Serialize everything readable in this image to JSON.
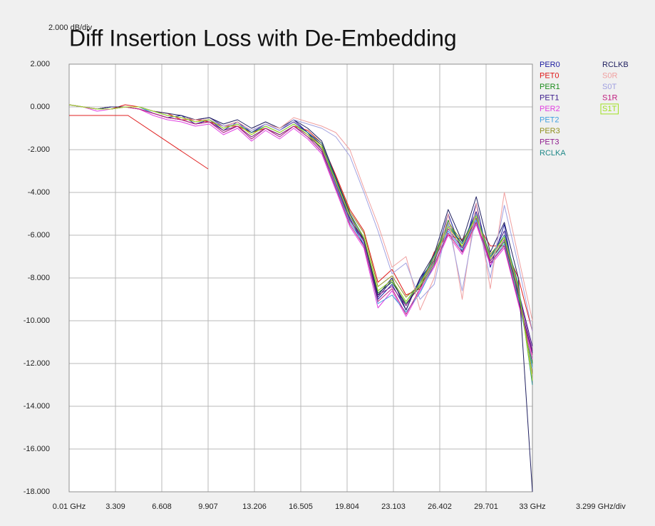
{
  "chart_data": {
    "type": "line",
    "title": "Diff Insertion Loss with De-Embedding",
    "y_scale_label": "2.000 dB/div",
    "x_scale_label": "3.299 GHz/div",
    "xlim": [
      0.01,
      33
    ],
    "ylim": [
      -18,
      2
    ],
    "grid": true,
    "xticks": [
      {
        "value": 0.01,
        "label": "0.01 GHz"
      },
      3.309,
      6.608,
      9.907,
      13.206,
      16.505,
      19.804,
      23.103,
      26.402,
      29.701,
      {
        "value": 33,
        "label": "33 GHz"
      }
    ],
    "yticks": [
      {
        "value": 2,
        "label": "2.000"
      },
      {
        "value": 0,
        "label": "0.000"
      },
      {
        "value": -2,
        "label": "-2.000"
      },
      {
        "value": -4,
        "label": "-4.000"
      },
      {
        "value": -6,
        "label": "-6.000"
      },
      {
        "value": -8,
        "label": "-8.000"
      },
      {
        "value": -10,
        "label": "-10.000"
      },
      {
        "value": -12,
        "label": "-12.000"
      },
      {
        "value": -14,
        "label": "-14.000"
      },
      {
        "value": -16,
        "label": "-16.000"
      },
      {
        "value": -18,
        "label": "-18.000"
      }
    ],
    "mask": {
      "color": "#e02020",
      "x": [
        0.01,
        4.2,
        9.9
      ],
      "values": [
        -0.4,
        -0.4,
        -2.9
      ]
    },
    "x": [
      0.01,
      1,
      2,
      3,
      4,
      5,
      6,
      7,
      8,
      9,
      10,
      11,
      12,
      13,
      14,
      15,
      16,
      17,
      18,
      19,
      20,
      21,
      22,
      23,
      24,
      25,
      26,
      27,
      28,
      29,
      30,
      31,
      32,
      33
    ],
    "series": [
      {
        "name": "PER0",
        "color": "#1c1ca0",
        "values": [
          0.1,
          0,
          -0.1,
          0,
          0,
          0,
          -0.3,
          -0.5,
          -0.4,
          -0.8,
          -0.6,
          -1.1,
          -0.7,
          -1.2,
          -0.8,
          -1.1,
          -0.6,
          -1.2,
          -2.0,
          -3.8,
          -5.2,
          -6.5,
          -9.0,
          -8.3,
          -9.5,
          -8.0,
          -7.2,
          -5.0,
          -6.8,
          -4.5,
          -7.5,
          -5.5,
          -9.0,
          -11.5
        ]
      },
      {
        "name": "PET0",
        "color": "#e01818",
        "values": [
          0.1,
          0,
          -0.1,
          -0.1,
          0.1,
          0,
          -0.2,
          -0.3,
          -0.6,
          -0.6,
          -0.7,
          -0.9,
          -0.9,
          -1.2,
          -1.0,
          -1.3,
          -0.9,
          -1.1,
          -1.7,
          -3.2,
          -4.8,
          -5.8,
          -8.2,
          -7.6,
          -8.8,
          -8.5,
          -6.8,
          -6.0,
          -6.2,
          -5.4,
          -6.5,
          -6.5,
          -8.0,
          -10.5
        ]
      },
      {
        "name": "PER1",
        "color": "#1c8c1c",
        "values": [
          0.1,
          0,
          -0.1,
          -0.1,
          0,
          -0.1,
          -0.3,
          -0.5,
          -0.6,
          -0.8,
          -0.7,
          -1.1,
          -0.9,
          -1.4,
          -1.0,
          -1.3,
          -0.9,
          -1.4,
          -1.9,
          -3.4,
          -5.3,
          -6.2,
          -8.7,
          -8.2,
          -9.2,
          -8.4,
          -7.3,
          -5.3,
          -6.6,
          -5.2,
          -7.2,
          -6.3,
          -8.8,
          -12.0
        ]
      },
      {
        "name": "PET1",
        "color": "#3c1c8c",
        "values": [
          0.1,
          0,
          -0.1,
          0,
          0,
          0,
          -0.2,
          -0.4,
          -0.5,
          -0.6,
          -0.5,
          -0.9,
          -0.7,
          -1.2,
          -0.8,
          -1.1,
          -0.7,
          -1.2,
          -1.8,
          -3.6,
          -5.1,
          -6.3,
          -8.9,
          -8.1,
          -9.3,
          -8.1,
          -7.1,
          -5.6,
          -6.4,
          -4.9,
          -7.1,
          -5.8,
          -8.6,
          -11.2
        ]
      },
      {
        "name": "PER2",
        "color": "#e040e0",
        "values": [
          0.1,
          0,
          -0.2,
          -0.1,
          0,
          -0.1,
          -0.4,
          -0.6,
          -0.7,
          -0.9,
          -0.8,
          -1.3,
          -1.0,
          -1.6,
          -1.1,
          -1.5,
          -1.0,
          -1.5,
          -2.2,
          -3.9,
          -5.6,
          -6.6,
          -9.4,
          -8.6,
          -9.8,
          -8.6,
          -7.5,
          -6.0,
          -6.9,
          -5.5,
          -7.4,
          -6.6,
          -9.2,
          -11.8
        ]
      },
      {
        "name": "PET2",
        "color": "#40a0e0",
        "values": [
          0.1,
          0,
          -0.1,
          -0.1,
          0,
          0,
          -0.3,
          -0.5,
          -0.6,
          -0.8,
          -0.7,
          -1.2,
          -0.9,
          -1.5,
          -1.0,
          -1.4,
          -0.9,
          -1.4,
          -2.1,
          -3.7,
          -5.4,
          -6.4,
          -9.2,
          -8.8,
          -9.6,
          -8.7,
          -7.4,
          -5.8,
          -6.7,
          -5.3,
          -7.3,
          -6.4,
          -9.0,
          -12.2
        ]
      },
      {
        "name": "PER3",
        "color": "#909020",
        "values": [
          0.1,
          0,
          -0.1,
          -0.1,
          0,
          0,
          -0.2,
          -0.4,
          -0.5,
          -0.7,
          -0.6,
          -1.0,
          -0.8,
          -1.3,
          -0.9,
          -1.2,
          -0.8,
          -1.3,
          -1.8,
          -3.3,
          -4.9,
          -5.9,
          -8.4,
          -7.9,
          -8.9,
          -8.3,
          -6.9,
          -5.4,
          -6.3,
          -5.1,
          -6.9,
          -6.1,
          -8.4,
          -12.5
        ]
      },
      {
        "name": "PET3",
        "color": "#902090",
        "values": [
          0.1,
          0,
          -0.1,
          -0.1,
          0,
          -0.1,
          -0.3,
          -0.5,
          -0.6,
          -0.8,
          -0.7,
          -1.1,
          -0.9,
          -1.4,
          -1.0,
          -1.3,
          -0.9,
          -1.3,
          -2.0,
          -3.6,
          -5.3,
          -6.3,
          -8.8,
          -8.4,
          -9.3,
          -8.3,
          -7.2,
          -5.7,
          -6.6,
          -5.2,
          -7.2,
          -6.2,
          -8.7,
          -11.4
        ]
      },
      {
        "name": "RCLKA",
        "color": "#208888",
        "values": [
          0.1,
          0,
          -0.1,
          -0.1,
          0,
          0,
          -0.2,
          -0.4,
          -0.5,
          -0.6,
          -0.6,
          -1.0,
          -0.8,
          -1.2,
          -0.9,
          -1.2,
          -0.8,
          -1.2,
          -1.7,
          -3.4,
          -5.0,
          -6.1,
          -8.6,
          -8.1,
          -9.1,
          -8.2,
          -7.0,
          -5.5,
          -6.4,
          -5.0,
          -7.0,
          -6.0,
          -8.3,
          -13.0
        ]
      },
      {
        "name": "RCLKB",
        "color": "#202060",
        "values": [
          0.1,
          0,
          -0.1,
          0,
          0,
          0,
          -0.2,
          -0.3,
          -0.4,
          -0.6,
          -0.5,
          -0.8,
          -0.6,
          -1.0,
          -0.7,
          -1.0,
          -0.6,
          -1.0,
          -1.6,
          -3.3,
          -5.0,
          -6.2,
          -8.8,
          -8.0,
          -9.5,
          -8.0,
          -6.9,
          -4.8,
          -6.3,
          -4.2,
          -6.8,
          -5.4,
          -8.0,
          -18.0
        ]
      },
      {
        "name": "S0R",
        "color": "#f0a0a0",
        "values": [
          0.1,
          0,
          -0.1,
          -0.1,
          0,
          0,
          -0.2,
          -0.4,
          -0.5,
          -0.6,
          -0.6,
          -0.9,
          -0.7,
          -1.1,
          -0.8,
          -1.0,
          -0.5,
          -0.7,
          -0.9,
          -1.2,
          -2.0,
          -3.8,
          -5.5,
          -7.5,
          -7.0,
          -9.5,
          -8.0,
          -5.0,
          -9.0,
          -4.5,
          -8.5,
          -4.0,
          -7.0,
          -10.0
        ]
      },
      {
        "name": "S0T",
        "color": "#a0a0e0",
        "values": [
          0.1,
          0,
          -0.1,
          -0.1,
          0,
          0,
          -0.2,
          -0.4,
          -0.5,
          -0.7,
          -0.6,
          -0.9,
          -0.8,
          -1.1,
          -0.8,
          -1.1,
          -0.6,
          -0.8,
          -1.0,
          -1.4,
          -2.3,
          -4.0,
          -5.8,
          -7.8,
          -7.3,
          -9.0,
          -8.3,
          -5.4,
          -8.6,
          -5.0,
          -8.0,
          -4.6,
          -7.4,
          -10.5
        ]
      },
      {
        "name": "S1R",
        "color": "#c02080",
        "values": [
          0.1,
          0,
          -0.1,
          -0.1,
          0,
          -0.1,
          -0.3,
          -0.5,
          -0.6,
          -0.8,
          -0.7,
          -1.2,
          -0.9,
          -1.5,
          -1.0,
          -1.4,
          -0.9,
          -1.4,
          -2.1,
          -3.8,
          -5.5,
          -6.5,
          -9.1,
          -8.5,
          -9.7,
          -8.5,
          -7.4,
          -5.9,
          -6.8,
          -5.4,
          -7.3,
          -6.5,
          -9.1,
          -11.6
        ]
      },
      {
        "name": "S1T",
        "color": "#a0e020",
        "values": [
          0.1,
          0,
          -0.1,
          -0.1,
          0,
          0,
          -0.2,
          -0.4,
          -0.5,
          -0.7,
          -0.6,
          -1.0,
          -0.8,
          -1.3,
          -0.9,
          -1.2,
          -0.8,
          -1.3,
          -1.9,
          -3.5,
          -5.1,
          -6.1,
          -8.6,
          -8.1,
          -9.1,
          -8.3,
          -7.1,
          -5.6,
          -6.5,
          -5.1,
          -7.1,
          -6.1,
          -8.5,
          -12.8
        ]
      }
    ]
  }
}
